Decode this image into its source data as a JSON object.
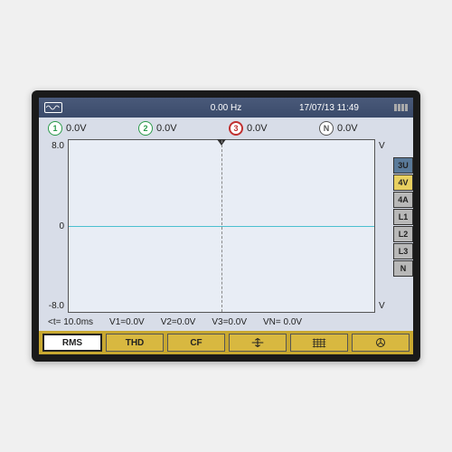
{
  "topbar": {
    "frequency": "0.00  Hz",
    "datetime": "17/07/13  11:49"
  },
  "channels": [
    {
      "num": "1",
      "value": "0.0V",
      "color": "#2a9a4a"
    },
    {
      "num": "2",
      "value": "0.0V",
      "color": "#2a9a4a"
    },
    {
      "num": "3",
      "value": "0.0V",
      "color": "#c03030"
    },
    {
      "num": "N",
      "value": "0.0V",
      "color": "#555555"
    }
  ],
  "selected_channel_index": 2,
  "yaxis": {
    "max": "8.0",
    "mid": "0",
    "min": "-8.0",
    "unit_top": "V",
    "unit_bot": "V"
  },
  "side_tabs": [
    {
      "label": "3U",
      "bg": "#5a7a9a"
    },
    {
      "label": "4V",
      "bg": "#e8d060"
    },
    {
      "label": "4A",
      "bg": "#b8b8b8"
    },
    {
      "label": "L1",
      "bg": "#b8b8b8"
    },
    {
      "label": "L2",
      "bg": "#b8b8b8"
    },
    {
      "label": "L3",
      "bg": "#b8b8b8"
    },
    {
      "label": "N",
      "bg": "#b8b8b8"
    }
  ],
  "info": {
    "time": "<t= 10.0ms",
    "v1": "V1=0.0V",
    "v2": "V2=0.0V",
    "v3": "V3=0.0V",
    "vn": "VN= 0.0V"
  },
  "buttons": {
    "rms": "RMS",
    "thd": "THD",
    "cf": "CF"
  },
  "colors": {
    "trace": "#4ac0d0",
    "plot_bg": "#e8edf5",
    "btnbar_bg": "#c8a830"
  }
}
